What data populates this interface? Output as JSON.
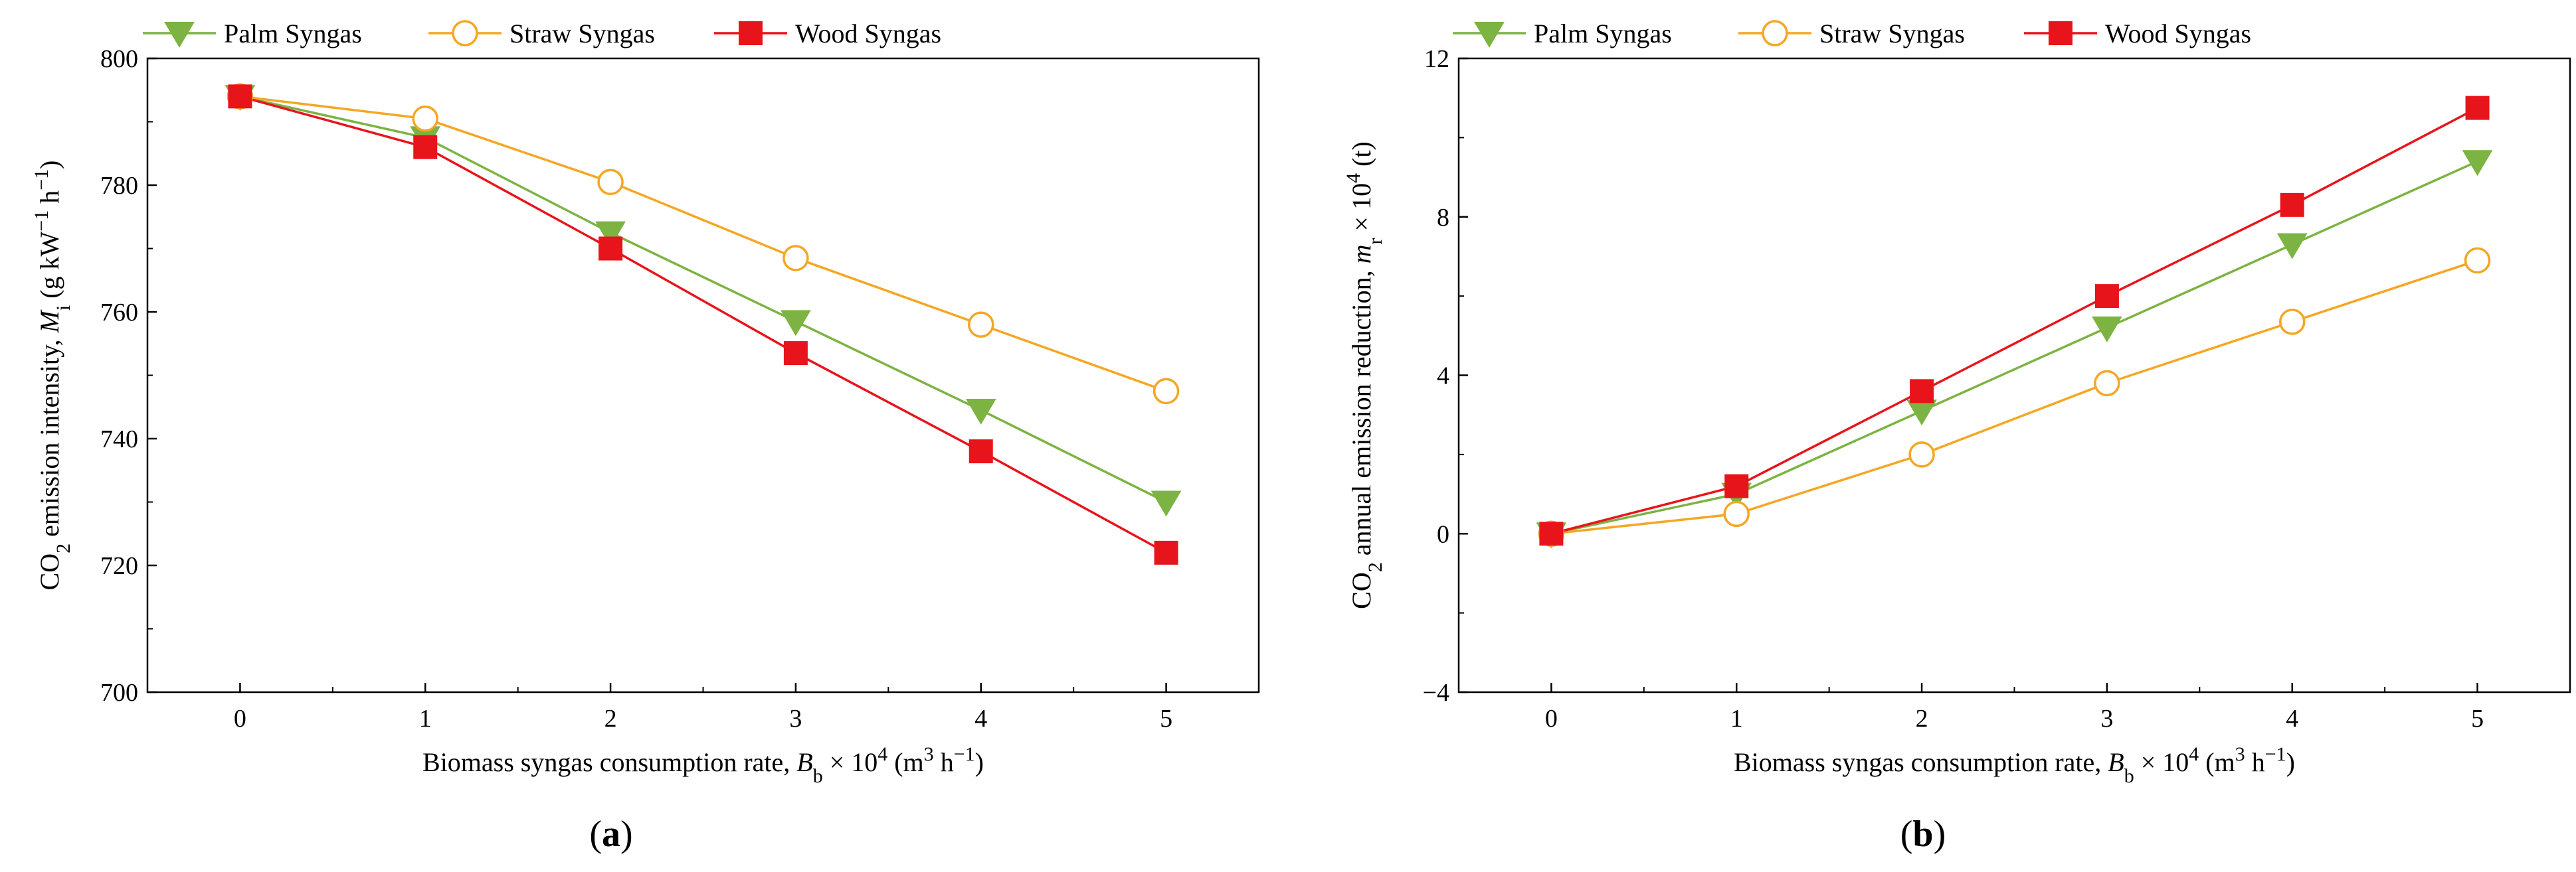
{
  "chart_data": [
    {
      "type": "line",
      "panel_label": "(a)",
      "xlabel": "Biomass syngas consumption rate, B_b × 10^4 (m^3 h^−1)",
      "xlabel_parts": {
        "pre": "Biomass syngas consumption rate, ",
        "sym": "B",
        "sub": "b",
        "mid": " × 10",
        "sup": "4",
        "unit_pre": " (m",
        "unit_sup1": "3",
        "unit_mid": " h",
        "unit_sup2": "−1",
        "unit_post": ")"
      },
      "ylabel": "CO2 emission intensity, M_i (g kW^−1 h^−1)",
      "ylabel_parts": {
        "pre": "CO",
        "sub1": "2",
        "mid": " emission intensity, ",
        "sym": "M",
        "sub2": "i",
        "unit_pre": " (g kW",
        "unit_sup1": "−1",
        "unit_mid": " h",
        "unit_sup2": "−1",
        "unit_post": ")"
      },
      "x": [
        0,
        1,
        2,
        3,
        4,
        5
      ],
      "xticks": [
        0,
        1,
        2,
        3,
        4,
        5
      ],
      "xlim": [
        -0.5,
        5.5
      ],
      "yticks": [
        700,
        720,
        740,
        760,
        780,
        800
      ],
      "ylim": [
        700,
        800
      ],
      "series": [
        {
          "name": "Palm Syngas",
          "color": "#7cb342",
          "marker": "triangle-down",
          "values": [
            794,
            787.5,
            772.5,
            758.5,
            744.5,
            730
          ]
        },
        {
          "name": "Straw Syngas",
          "color": "#f5a623",
          "marker": "circle-open",
          "values": [
            794,
            790.5,
            780.5,
            768.5,
            758,
            747.5
          ]
        },
        {
          "name": "Wood Syngas",
          "color": "#e8141b",
          "marker": "square",
          "values": [
            794,
            786,
            770,
            753.5,
            738,
            722
          ]
        }
      ],
      "legend": "top",
      "grid": false
    },
    {
      "type": "line",
      "panel_label": "(b)",
      "xlabel": "Biomass syngas consumption rate, B_b × 10^4 (m^3 h^−1)",
      "xlabel_parts": {
        "pre": "Biomass syngas consumption rate, ",
        "sym": "B",
        "sub": "b",
        "mid": " × 10",
        "sup": "4",
        "unit_pre": " (m",
        "unit_sup1": "3",
        "unit_mid": " h",
        "unit_sup2": "−1",
        "unit_post": ")"
      },
      "ylabel": "CO2 annual emission reduction, m_r × 10^4 (t)",
      "ylabel_parts": {
        "pre": "CO",
        "sub1": "2",
        "mid": " annual emission reduction, ",
        "sym": "m",
        "sub2": "r",
        "unit_pre": " × 10",
        "unit_sup1": "4",
        "unit_mid": " (t)",
        "unit_sup2": "",
        "unit_post": ""
      },
      "x": [
        0,
        1,
        2,
        3,
        4,
        5
      ],
      "xticks": [
        0,
        1,
        2,
        3,
        4,
        5
      ],
      "xlim": [
        -0.5,
        5.5
      ],
      "yticks": [
        -4,
        0,
        4,
        8,
        12
      ],
      "ylim": [
        -4,
        12
      ],
      "series": [
        {
          "name": "Palm Syngas",
          "color": "#7cb342",
          "marker": "triangle-down",
          "values": [
            0,
            1.0,
            3.1,
            5.2,
            7.3,
            9.4
          ]
        },
        {
          "name": "Straw Syngas",
          "color": "#f5a623",
          "marker": "circle-open",
          "values": [
            0,
            0.5,
            2.0,
            3.8,
            5.35,
            6.9
          ]
        },
        {
          "name": "Wood Syngas",
          "color": "#e8141b",
          "marker": "square",
          "values": [
            0,
            1.2,
            3.6,
            6.0,
            8.3,
            10.75
          ]
        }
      ],
      "legend": "top",
      "grid": false
    }
  ]
}
